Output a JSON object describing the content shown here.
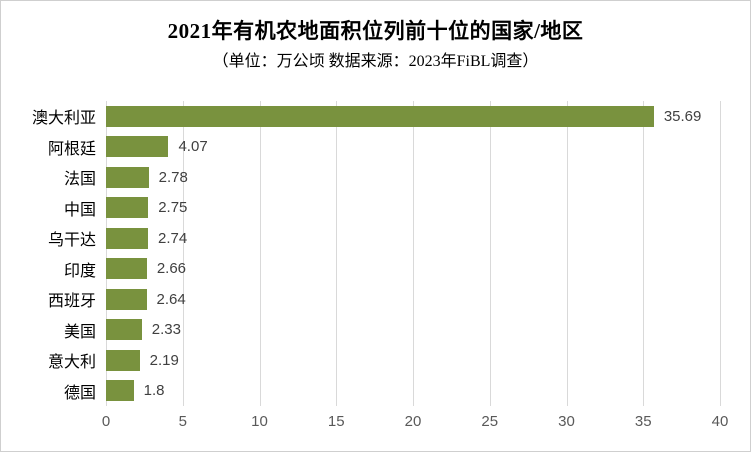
{
  "chart_data": {
    "type": "bar",
    "orientation": "horizontal",
    "title": "2021年有机农地面积位列前十位的国家/地区",
    "subtitle": "（单位：万公顷 数据来源：2023年FiBL调查）",
    "categories": [
      "澳大利亚",
      "阿根廷",
      "法国",
      "中国",
      "乌干达",
      "印度",
      "西班牙",
      "美国",
      "意大利",
      "德国"
    ],
    "values": [
      35.69,
      4.07,
      2.78,
      2.75,
      2.74,
      2.66,
      2.64,
      2.33,
      2.19,
      1.8
    ],
    "value_labels": [
      "35.69",
      "4.07",
      "2.78",
      "2.75",
      "2.74",
      "2.66",
      "2.64",
      "2.33",
      "2.19",
      "1.8"
    ],
    "xlabel": "",
    "ylabel": "",
    "xlim": [
      0,
      40
    ],
    "x_ticks": [
      0,
      5,
      10,
      15,
      20,
      25,
      30,
      35,
      40
    ],
    "grid": "vertical gridlines on",
    "legend_position": "none",
    "colors": {
      "bar": "#79923E",
      "gridline": "#d9d9d9",
      "tick_label": "#595959",
      "value_label": "#404040",
      "category_label": "#000000",
      "background": "#ffffff"
    }
  }
}
